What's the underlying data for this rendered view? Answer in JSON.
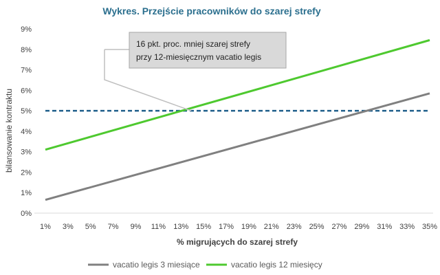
{
  "chart_data": {
    "type": "line",
    "title": "Wykres. Przejście pracowników do szarej strefy",
    "xlabel": "% migrujących do szarej strefy",
    "ylabel": "bilansowanie kontraktu",
    "x": [
      1,
      35
    ],
    "x_ticks": [
      "1%",
      "3%",
      "5%",
      "7%",
      "9%",
      "11%",
      "13%",
      "15%",
      "17%",
      "19%",
      "21%",
      "23%",
      "25%",
      "27%",
      "29%",
      "31%",
      "33%",
      "35%"
    ],
    "y_ticks": [
      "0%",
      "1%",
      "2%",
      "3%",
      "4%",
      "5%",
      "6%",
      "7%",
      "8%",
      "9%"
    ],
    "xlim": [
      1,
      35
    ],
    "ylim": [
      0,
      9
    ],
    "series": [
      {
        "name": "vacatio legis 3 miesiące",
        "color": "#808080",
        "x": [
          1,
          35
        ],
        "y": [
          0.65,
          5.85
        ]
      },
      {
        "name": "vacatio legis 12 miesięcy",
        "color": "#4ec92f",
        "x": [
          1,
          35
        ],
        "y": [
          3.1,
          8.45
        ]
      }
    ],
    "reference_line": {
      "y": 5,
      "color": "#1f5f8b",
      "style": "dashed"
    },
    "annotation": {
      "lines": [
        "16 pkt. proc. mniej szarej strefy",
        "przy 12-miesięcznym vacatio legis"
      ],
      "target": {
        "x": 13.9,
        "y": 5
      }
    },
    "grid": false,
    "legend_position": "bottom"
  }
}
